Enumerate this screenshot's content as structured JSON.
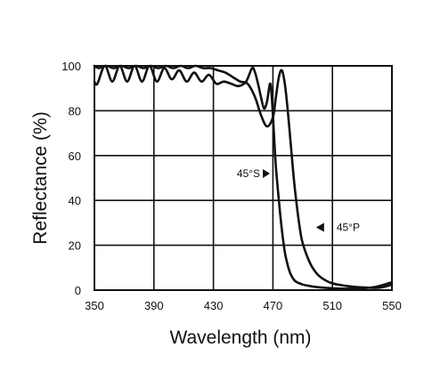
{
  "chart_data": {
    "type": "line",
    "title": "",
    "xlabel": "Wavelength (nm)",
    "ylabel": "Reflectance (%)",
    "xlim": [
      350,
      550
    ],
    "ylim": [
      0,
      100
    ],
    "x_ticks": [
      350,
      390,
      430,
      470,
      510,
      550
    ],
    "y_ticks": [
      0,
      20,
      40,
      60,
      80,
      100
    ],
    "grid": true,
    "series": [
      {
        "name": "45°S",
        "x": [
          350,
          352,
          357,
          362,
          367,
          372,
          377,
          382,
          387,
          392,
          397,
          402,
          407,
          412,
          417,
          422,
          427,
          432,
          437,
          442,
          447,
          452,
          456,
          458,
          460,
          462,
          464,
          466,
          468,
          469,
          470,
          471,
          472,
          474,
          476,
          478,
          480,
          482,
          485,
          490,
          495,
          500,
          505,
          510,
          515,
          520,
          530,
          540,
          550
        ],
        "y": [
          93,
          92,
          100,
          93,
          100,
          93,
          100,
          93,
          100,
          93,
          99,
          94,
          98,
          93,
          97,
          93,
          96,
          92,
          93,
          92,
          91,
          93,
          99,
          97,
          92,
          86,
          81,
          84,
          92,
          88,
          78,
          66,
          55,
          40,
          27,
          17,
          11,
          7,
          4,
          2.5,
          1.8,
          1.3,
          1,
          0.8,
          0.7,
          0.6,
          0.8,
          1.6,
          3.5
        ]
      },
      {
        "name": "45°P",
        "x": [
          350,
          353,
          358,
          363,
          368,
          373,
          378,
          383,
          388,
          393,
          398,
          403,
          408,
          413,
          418,
          423,
          428,
          433,
          438,
          443,
          448,
          453,
          458,
          462,
          466,
          470,
          472,
          474,
          476,
          478,
          480,
          482,
          484,
          486,
          488,
          490,
          495,
          500,
          505,
          510,
          520,
          530,
          540,
          545,
          550
        ],
        "y": [
          100,
          99,
          100,
          99,
          100,
          99,
          100,
          99,
          100,
          99,
          100,
          99,
          100,
          99,
          100,
          99,
          99,
          98,
          97,
          95,
          93,
          92,
          86,
          78,
          73,
          77,
          86,
          95,
          98,
          92,
          80,
          65,
          50,
          38,
          28,
          21,
          12,
          7,
          4.5,
          3,
          1.8,
          1.2,
          1,
          1.5,
          2.5
        ]
      }
    ],
    "annotations": [
      {
        "text": "45°S",
        "arrow": "right",
        "x": 468,
        "y": 52,
        "series": "45°S"
      },
      {
        "text": "45°P",
        "arrow": "left",
        "x": 499,
        "y": 28,
        "series": "45°P"
      }
    ]
  }
}
